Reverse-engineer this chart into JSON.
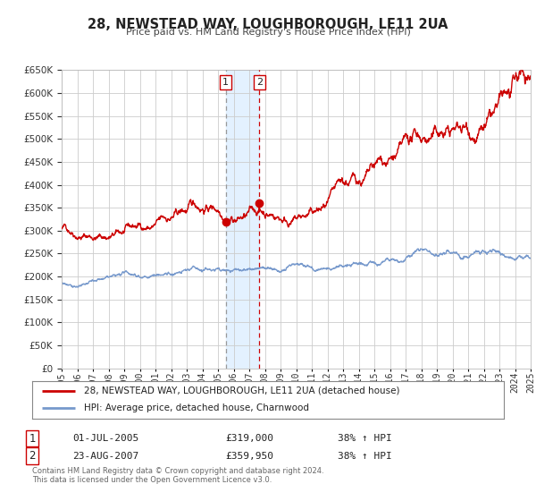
{
  "title": "28, NEWSTEAD WAY, LOUGHBOROUGH, LE11 2UA",
  "subtitle": "Price paid vs. HM Land Registry's House Price Index (HPI)",
  "legend_line1": "28, NEWSTEAD WAY, LOUGHBOROUGH, LE11 2UA (detached house)",
  "legend_line2": "HPI: Average price, detached house, Charnwood",
  "transaction1_label": "1",
  "transaction1_date": "01-JUL-2005",
  "transaction1_price": "£319,000",
  "transaction1_hpi": "38% ↑ HPI",
  "transaction2_label": "2",
  "transaction2_date": "23-AUG-2007",
  "transaction2_price": "£359,950",
  "transaction2_hpi": "38% ↑ HPI",
  "footer1": "Contains HM Land Registry data © Crown copyright and database right 2024.",
  "footer2": "This data is licensed under the Open Government Licence v3.0.",
  "red_color": "#cc0000",
  "blue_color": "#7799cc",
  "gray_color": "#999999",
  "background_color": "#ffffff",
  "grid_color": "#cccccc",
  "shading_color": "#ddeeff",
  "marker1_x": 2005.5,
  "marker1_y": 319000,
  "marker2_x": 2007.65,
  "marker2_y": 359950,
  "vline1_x": 2005.5,
  "vline2_x": 2007.65,
  "ylim": [
    0,
    650000
  ],
  "xlim_start": 1995,
  "xlim_end": 2025
}
